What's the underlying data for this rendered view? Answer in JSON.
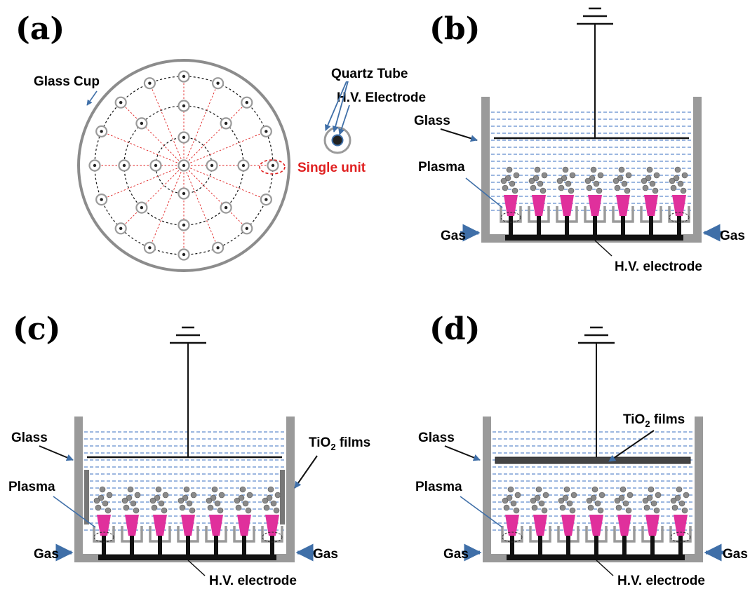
{
  "panels": {
    "a": {
      "label": "(a)",
      "glass_cup": "Glass Cup",
      "quartz_tube": "Quartz Tube",
      "hv_electrode": "H.V. Electrode",
      "single_unit": "Single unit"
    },
    "b": {
      "label": "(b)",
      "glass": "Glass",
      "plasma": "Plasma",
      "gas_left": "Gas",
      "gas_right": "Gas",
      "hv_electrode": "H.V. electrode"
    },
    "c": {
      "label": "(c)",
      "glass": "Glass",
      "films_main": "TiO",
      "films_sub": "2",
      "films_rest": " films",
      "plasma": "Plasma",
      "gas_left": "Gas",
      "gas_right": "Gas",
      "hv_electrode": "H.V. electrode"
    },
    "d": {
      "label": "(d)",
      "glass": "Glass",
      "films_main": "TiO",
      "films_sub": "2",
      "films_rest": " films",
      "plasma": "Plasma",
      "gas_left": "Gas",
      "gas_right": "Gas",
      "hv_electrode": "H.V. electrode"
    }
  },
  "colors": {
    "water_lines": "#3a6fc0",
    "plasma": "#e0309c",
    "vessel": "#9a9a9a",
    "arrow": "#3f6fa8",
    "red": "#e02020",
    "bubble": "#8a8a8a"
  }
}
